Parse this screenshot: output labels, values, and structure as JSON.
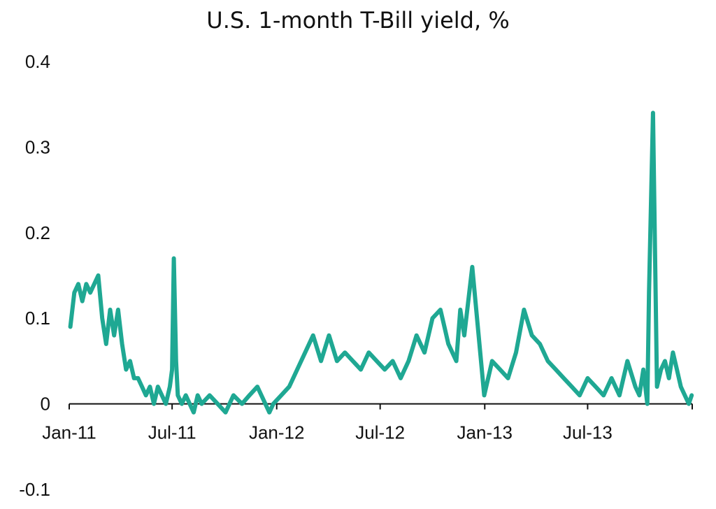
{
  "chart_data": {
    "type": "line",
    "title": "U.S. 1-month T-Bill yield, %",
    "xlabel": "",
    "ylabel": "",
    "ylim": [
      -0.1,
      0.4
    ],
    "yticks": [
      "0.4",
      "0.3",
      "0.2",
      "0.1",
      "0",
      "-0.1"
    ],
    "xticks": [
      "Jan-11",
      "Jul-11",
      "Jan-12",
      "Jul-12",
      "Jan-13",
      "Jul-13"
    ],
    "x_axis_at_zero": true,
    "grid": false,
    "legend": "none",
    "series": [
      {
        "color": "#1fa893",
        "x": [
          "2011-01-03",
          "2011-01-10",
          "2011-01-17",
          "2011-01-24",
          "2011-01-31",
          "2011-02-07",
          "2011-02-14",
          "2011-02-21",
          "2011-02-28",
          "2011-03-07",
          "2011-03-14",
          "2011-03-21",
          "2011-03-28",
          "2011-04-04",
          "2011-04-11",
          "2011-04-18",
          "2011-04-25",
          "2011-05-02",
          "2011-05-09",
          "2011-05-16",
          "2011-05-23",
          "2011-05-30",
          "2011-06-06",
          "2011-06-13",
          "2011-06-20",
          "2011-06-27",
          "2011-07-01",
          "2011-07-04",
          "2011-07-08",
          "2011-07-11",
          "2011-07-18",
          "2011-07-25",
          "2011-08-01",
          "2011-08-08",
          "2011-08-15",
          "2011-08-22",
          "2011-09-05",
          "2011-09-19",
          "2011-10-03",
          "2011-10-17",
          "2011-11-01",
          "2011-11-14",
          "2011-11-28",
          "2011-12-12",
          "2011-12-19",
          "2011-12-26",
          "2012-01-09",
          "2012-01-23",
          "2012-02-06",
          "2012-02-20",
          "2012-03-05",
          "2012-03-19",
          "2012-04-02",
          "2012-04-16",
          "2012-04-30",
          "2012-05-14",
          "2012-05-28",
          "2012-06-11",
          "2012-06-25",
          "2012-07-09",
          "2012-07-23",
          "2012-08-06",
          "2012-08-20",
          "2012-09-03",
          "2012-09-17",
          "2012-10-01",
          "2012-10-15",
          "2012-10-22",
          "2012-10-29",
          "2012-11-12",
          "2012-11-19",
          "2012-11-26",
          "2012-12-03",
          "2012-12-10",
          "2012-12-17",
          "2012-12-31",
          "2013-01-14",
          "2013-01-28",
          "2013-02-11",
          "2013-02-25",
          "2013-03-11",
          "2013-03-25",
          "2013-04-08",
          "2013-04-22",
          "2013-05-06",
          "2013-05-20",
          "2013-06-03",
          "2013-06-17",
          "2013-07-01",
          "2013-07-15",
          "2013-07-29",
          "2013-08-12",
          "2013-08-26",
          "2013-09-09",
          "2013-09-23",
          "2013-09-30",
          "2013-10-07",
          "2013-10-14",
          "2013-10-17",
          "2013-10-24",
          "2013-10-31",
          "2013-11-07",
          "2013-11-14",
          "2013-11-21",
          "2013-11-28",
          "2013-12-05",
          "2013-12-12",
          "2013-12-19",
          "2013-12-26",
          "2013-12-31"
        ],
        "y": [
          0.09,
          0.13,
          0.14,
          0.12,
          0.14,
          0.13,
          0.14,
          0.15,
          0.1,
          0.07,
          0.11,
          0.08,
          0.11,
          0.07,
          0.04,
          0.05,
          0.03,
          0.03,
          0.02,
          0.01,
          0.02,
          0.0,
          0.02,
          0.01,
          0.0,
          0.02,
          0.04,
          0.17,
          0.05,
          0.01,
          0.0,
          0.01,
          0.0,
          -0.01,
          0.01,
          0.0,
          0.01,
          0.0,
          -0.01,
          0.01,
          0.0,
          0.01,
          0.02,
          0.0,
          -0.01,
          0.0,
          0.01,
          0.02,
          0.04,
          0.06,
          0.08,
          0.05,
          0.08,
          0.05,
          0.06,
          0.05,
          0.04,
          0.06,
          0.05,
          0.04,
          0.05,
          0.03,
          0.05,
          0.08,
          0.06,
          0.1,
          0.11,
          0.09,
          0.07,
          0.05,
          0.11,
          0.08,
          0.12,
          0.16,
          0.11,
          0.01,
          0.05,
          0.04,
          0.03,
          0.06,
          0.11,
          0.08,
          0.07,
          0.05,
          0.04,
          0.03,
          0.02,
          0.01,
          0.03,
          0.02,
          0.01,
          0.03,
          0.01,
          0.05,
          0.02,
          0.01,
          0.04,
          0.0,
          0.13,
          0.34,
          0.02,
          0.04,
          0.05,
          0.03,
          0.06,
          0.04,
          0.02,
          0.01,
          0.0,
          0.01
        ]
      }
    ]
  }
}
